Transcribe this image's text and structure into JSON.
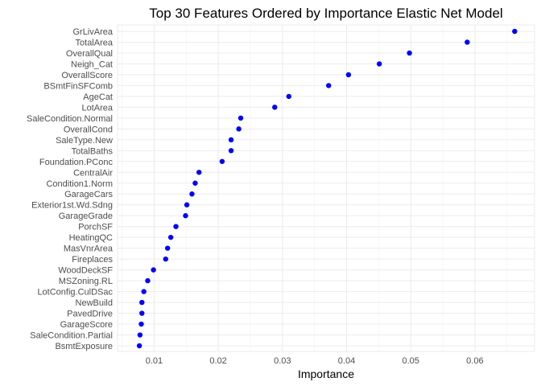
{
  "chart_data": {
    "type": "scatter",
    "title": "Top 30 Features Ordered by Importance Elastic Net Model",
    "xlabel": "Importance",
    "ylabel": "",
    "xlim": [
      0.0043,
      0.0693
    ],
    "xticks": [
      0.01,
      0.02,
      0.03,
      0.04,
      0.05,
      0.06
    ],
    "xtick_labels": [
      "0.01",
      "0.02",
      "0.03",
      "0.04",
      "0.05",
      "0.06"
    ],
    "grid": true,
    "point_color": "#0000ff",
    "categories": [
      "GrLivArea",
      "TotalArea",
      "OverallQual",
      "Neigh_Cat",
      "OverallScore",
      "BSmtFinSFComb",
      "AgeCat",
      "LotArea",
      "SaleCondition.Normal",
      "OverallCond",
      "SaleType.New",
      "TotalBaths",
      "Foundation.PConc",
      "CentralAir",
      "Condition1.Norm",
      "GarageCars",
      "Exterior1st.Wd.Sdng",
      "GarageGrade",
      "PorchSF",
      "HeatingQC",
      "MasVnrArea",
      "Fireplaces",
      "WoodDeckSF",
      "MSZoning.RL",
      "LotConfig.CulDSac",
      "NewBuild",
      "PavedDrive",
      "GarageScore",
      "SaleCondition.Partial",
      "BsmtExposure"
    ],
    "values": [
      0.0662,
      0.0588,
      0.0498,
      0.0451,
      0.0403,
      0.0372,
      0.031,
      0.0288,
      0.0235,
      0.0232,
      0.022,
      0.022,
      0.0206,
      0.017,
      0.0164,
      0.0159,
      0.0151,
      0.0149,
      0.0134,
      0.0126,
      0.0121,
      0.0118,
      0.0099,
      0.009,
      0.0084,
      0.0081,
      0.0081,
      0.008,
      0.0078,
      0.0077
    ]
  }
}
